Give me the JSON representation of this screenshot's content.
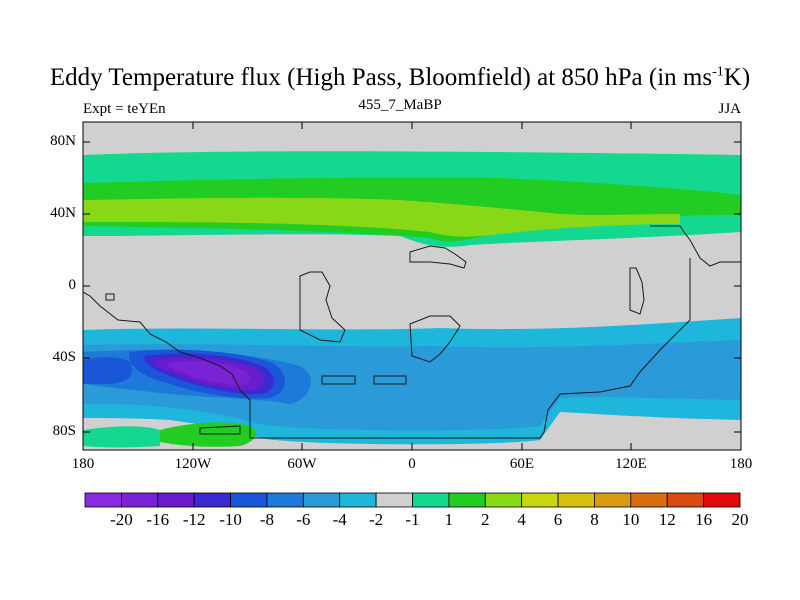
{
  "title": {
    "main": "Eddy Temperature flux (High Pass, Bloomfield) at 850 hPa (in ms",
    "sup": "-1",
    "tail": "K)"
  },
  "subtitle_left": "Expt = teYEn",
  "subtitle_center": "455_7_MaBP",
  "subtitle_right": "JJA",
  "axes": {
    "yticks": [
      "80N",
      "40N",
      "0",
      "40S",
      "80S"
    ],
    "xticks": [
      "180",
      "120W",
      "60W",
      "0",
      "60E",
      "120E",
      "180"
    ]
  },
  "colorbar": {
    "labels": [
      "-20",
      "-16",
      "-12",
      "-10",
      "-8",
      "-6",
      "-4",
      "-2",
      "-1",
      "1",
      "2",
      "4",
      "6",
      "8",
      "10",
      "12",
      "16",
      "20"
    ],
    "colors": [
      "#8a2be2",
      "#7a22d6",
      "#6a1ccc",
      "#3a2ad0",
      "#1a56d8",
      "#1e7ad8",
      "#2a9ad8",
      "#1fb6dc",
      "#d0d0d0",
      "#14d890",
      "#22cc22",
      "#88d818",
      "#c8d810",
      "#d8c010",
      "#d89a10",
      "#d86e10",
      "#d84a10",
      "#e00a0a"
    ]
  },
  "legend_palette": {
    "grey": "#d0d0d0",
    "green": "#14d890",
    "yellowgreen": "#88d818",
    "blue": "#2a9ad8",
    "cyan": "#1fb6dc",
    "purple": "#7a22d6",
    "deepblue": "#1a56d8"
  }
}
